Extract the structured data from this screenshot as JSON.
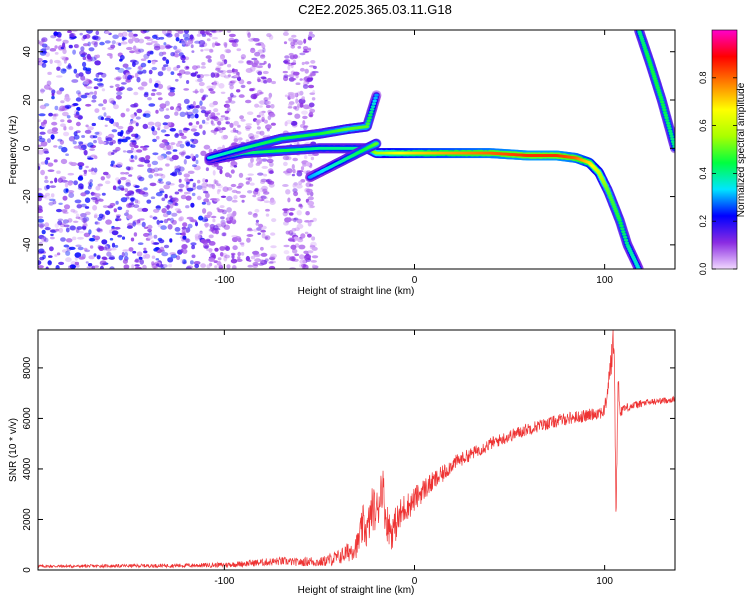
{
  "title": "C2E2.2025.365.03.11.G18",
  "chart_data": [
    {
      "type": "heatmap",
      "name": "spectrogram",
      "xlabel": "Height of straight line (km)",
      "ylabel": "Frequency (Hz)",
      "xlim": [
        -198,
        137
      ],
      "ylim": [
        -50,
        49
      ],
      "x_ticks": [
        -100,
        0,
        100
      ],
      "y_ticks": [
        -40,
        -20,
        0,
        20,
        40
      ],
      "x_tick_labels": [
        "-100",
        "0",
        "100"
      ],
      "y_tick_labels": [
        "-40",
        "-20",
        "0",
        "20",
        "40"
      ],
      "colorbar": {
        "label": "Normalized spectral amplitude",
        "range": [
          0,
          1
        ],
        "ticks": [
          0.0,
          0.2,
          0.4,
          0.6,
          0.8
        ],
        "tick_labels": [
          "0.0",
          "0.2",
          "0.4",
          "0.6",
          "0.8"
        ],
        "colors": [
          "#f2d9ff",
          "#8a2be2",
          "#0000ff",
          "#00e5ff",
          "#00ff40",
          "#aaff00",
          "#ffff00",
          "#ff8000",
          "#ff0000",
          "#ff00cc"
        ]
      },
      "features": [
        {
          "name": "main-trace",
          "x": [
            -108,
            -90,
            -70,
            -50,
            -35,
            -25,
            -20,
            -15,
            -10,
            0,
            20,
            40,
            60,
            75,
            85,
            92,
            97,
            102,
            108,
            112,
            118
          ],
          "y": [
            -5,
            -2,
            -1,
            0,
            0,
            0,
            -2,
            -2,
            -2,
            -2,
            -2,
            -2,
            -3,
            -3,
            -4,
            -6,
            -10,
            -18,
            -30,
            -40,
            -50
          ],
          "amplitude": [
            0.35,
            0.4,
            0.45,
            0.4,
            0.4,
            0.4,
            0.55,
            0.6,
            0.65,
            0.7,
            0.75,
            0.8,
            0.85,
            0.85,
            0.8,
            0.7,
            0.6,
            0.5,
            0.45,
            0.4,
            0.35
          ]
        },
        {
          "name": "upper-branch",
          "x": [
            -108,
            -90,
            -70,
            -50,
            -35,
            -25,
            -20
          ],
          "y": [
            -4,
            0,
            4,
            6,
            8,
            9,
            22
          ],
          "amplitude": [
            0.35,
            0.4,
            0.45,
            0.45,
            0.5,
            0.5,
            0.3
          ]
        },
        {
          "name": "lower-branch",
          "x": [
            -55,
            -45,
            -35,
            -25,
            -20
          ],
          "y": [
            -12,
            -8,
            -4,
            0,
            2
          ],
          "amplitude": [
            0.3,
            0.35,
            0.4,
            0.45,
            0.5
          ]
        },
        {
          "name": "aliased-trace",
          "x": [
            118,
            124,
            130,
            137
          ],
          "y": [
            49,
            35,
            20,
            0
          ],
          "amplitude": [
            0.4,
            0.45,
            0.45,
            0.4
          ]
        }
      ]
    },
    {
      "type": "line",
      "name": "snr",
      "xlabel": "Height of straight line (km)",
      "ylabel": "SNR (10 * v/v)",
      "xlim": [
        -198,
        137
      ],
      "ylim": [
        0,
        9500
      ],
      "x_ticks": [
        -100,
        0,
        100
      ],
      "y_ticks": [
        0,
        2000,
        4000,
        6000,
        8000
      ],
      "x_tick_labels": [
        "-100",
        "0",
        "100"
      ],
      "y_tick_labels": [
        "0",
        "2000",
        "4000",
        "6000",
        "8000"
      ],
      "line_color": "#ee3333",
      "series": [
        {
          "name": "SNR",
          "x": [
            -198,
            -180,
            -160,
            -140,
            -120,
            -100,
            -90,
            -80,
            -70,
            -60,
            -55,
            -50,
            -45,
            -40,
            -35,
            -30,
            -27,
            -25,
            -22,
            -20,
            -17,
            -15,
            -12,
            -10,
            -7,
            -5,
            -2,
            0,
            5,
            10,
            15,
            20,
            30,
            40,
            50,
            60,
            70,
            80,
            90,
            95,
            100,
            103,
            105,
            106,
            107,
            108,
            110,
            115,
            120,
            130,
            137
          ],
          "y": [
            150,
            150,
            160,
            170,
            180,
            200,
            250,
            300,
            350,
            300,
            350,
            300,
            400,
            500,
            700,
            1000,
            1800,
            1500,
            2500,
            2200,
            3500,
            2000,
            1500,
            1800,
            2200,
            2500,
            2600,
            2800,
            3200,
            3500,
            3800,
            4200,
            4600,
            5000,
            5300,
            5600,
            5800,
            6000,
            6100,
            6200,
            6300,
            8000,
            9200,
            2000,
            7500,
            6300,
            6400,
            6500,
            6600,
            6700,
            6750
          ],
          "noise_amplitude": [
            60,
            60,
            60,
            70,
            80,
            100,
            120,
            150,
            170,
            150,
            200,
            180,
            250,
            300,
            400,
            500,
            800,
            700,
            900,
            900,
            1000,
            800,
            700,
            700,
            700,
            600,
            500,
            500,
            450,
            400,
            350,
            300,
            250,
            250,
            250,
            250,
            250,
            250,
            250,
            250,
            300,
            600,
            800,
            300,
            800,
            300,
            200,
            150,
            150,
            120,
            120
          ]
        }
      ]
    }
  ]
}
